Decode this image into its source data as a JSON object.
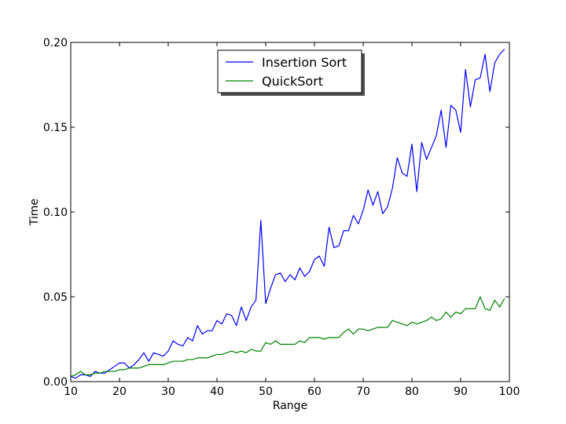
{
  "chart_data": {
    "type": "line",
    "title": "",
    "xlabel": "Range",
    "ylabel": "Time",
    "xlim": [
      10,
      100
    ],
    "ylim": [
      0,
      0.2
    ],
    "xticks": [
      10,
      20,
      30,
      40,
      50,
      60,
      70,
      80,
      90,
      100
    ],
    "xtick_labels": [
      "10",
      "20",
      "30",
      "40",
      "50",
      "60",
      "70",
      "80",
      "90",
      "100"
    ],
    "yticks": [
      0,
      0.05,
      0.1,
      0.15,
      0.2
    ],
    "ytick_labels": [
      "0.00",
      "0.05",
      "0.10",
      "0.15",
      "0.20"
    ],
    "grid": false,
    "legend": "top-center",
    "x": [
      10,
      11,
      12,
      13,
      14,
      15,
      16,
      17,
      18,
      19,
      20,
      21,
      22,
      23,
      24,
      25,
      26,
      27,
      28,
      29,
      30,
      31,
      32,
      33,
      34,
      35,
      36,
      37,
      38,
      39,
      40,
      41,
      42,
      43,
      44,
      45,
      46,
      47,
      48,
      49,
      50,
      51,
      52,
      53,
      54,
      55,
      56,
      57,
      58,
      59,
      60,
      61,
      62,
      63,
      64,
      65,
      66,
      67,
      68,
      69,
      70,
      71,
      72,
      73,
      74,
      75,
      76,
      77,
      78,
      79,
      80,
      81,
      82,
      83,
      84,
      85,
      86,
      87,
      88,
      89,
      90,
      91,
      92,
      93,
      94,
      95,
      96,
      97,
      98,
      99
    ],
    "series": [
      {
        "name": "Insertion Sort",
        "color": "#0000ff",
        "values": [
          0.003,
          0.002,
          0.004,
          0.004,
          0.003,
          0.006,
          0.005,
          0.005,
          0.007,
          0.009,
          0.011,
          0.011,
          0.008,
          0.01,
          0.013,
          0.017,
          0.012,
          0.017,
          0.016,
          0.015,
          0.018,
          0.024,
          0.022,
          0.021,
          0.026,
          0.024,
          0.033,
          0.028,
          0.03,
          0.03,
          0.036,
          0.034,
          0.04,
          0.039,
          0.033,
          0.044,
          0.036,
          0.044,
          0.048,
          0.095,
          0.046,
          0.055,
          0.063,
          0.064,
          0.059,
          0.063,
          0.06,
          0.067,
          0.062,
          0.065,
          0.072,
          0.074,
          0.068,
          0.091,
          0.079,
          0.08,
          0.089,
          0.089,
          0.098,
          0.093,
          0.101,
          0.113,
          0.104,
          0.112,
          0.099,
          0.103,
          0.114,
          0.132,
          0.123,
          0.121,
          0.14,
          0.112,
          0.141,
          0.131,
          0.138,
          0.145,
          0.16,
          0.138,
          0.163,
          0.16,
          0.147,
          0.184,
          0.162,
          0.178,
          0.179,
          0.193,
          0.171,
          0.188,
          0.193,
          0.196
        ]
      },
      {
        "name": "QuickSort",
        "color": "#008000",
        "values": [
          0.003,
          0.004,
          0.006,
          0.004,
          0.004,
          0.005,
          0.005,
          0.006,
          0.006,
          0.006,
          0.007,
          0.007,
          0.008,
          0.008,
          0.008,
          0.009,
          0.01,
          0.01,
          0.01,
          0.01,
          0.011,
          0.012,
          0.012,
          0.012,
          0.013,
          0.013,
          0.014,
          0.014,
          0.014,
          0.015,
          0.016,
          0.016,
          0.017,
          0.018,
          0.017,
          0.018,
          0.017,
          0.019,
          0.018,
          0.018,
          0.023,
          0.022,
          0.024,
          0.022,
          0.022,
          0.022,
          0.022,
          0.024,
          0.023,
          0.026,
          0.026,
          0.026,
          0.025,
          0.026,
          0.026,
          0.026,
          0.029,
          0.031,
          0.028,
          0.031,
          0.031,
          0.03,
          0.031,
          0.032,
          0.032,
          0.032,
          0.036,
          0.035,
          0.034,
          0.033,
          0.035,
          0.034,
          0.035,
          0.036,
          0.038,
          0.036,
          0.037,
          0.041,
          0.038,
          0.041,
          0.04,
          0.043,
          0.043,
          0.043,
          0.05,
          0.043,
          0.042,
          0.048,
          0.044,
          0.049
        ]
      }
    ]
  }
}
